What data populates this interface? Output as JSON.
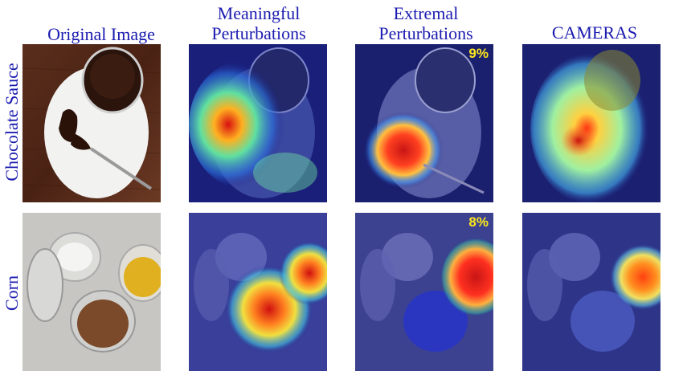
{
  "columns": {
    "original": [
      "Original Image"
    ],
    "meaningful": [
      "Meaningful",
      "Perturbations"
    ],
    "extremal": [
      "Extremal",
      "Perturbations"
    ],
    "cameras": [
      "CAMERAS"
    ]
  },
  "rows": {
    "chocolate": {
      "label": "Chocolate Sauce",
      "extremal_percent": "9%"
    },
    "corn": {
      "label": "Corn",
      "extremal_percent": "8%"
    }
  },
  "colors": {
    "label_blue": "#1b1bb0",
    "percent_yellow": "#ffe81a"
  }
}
